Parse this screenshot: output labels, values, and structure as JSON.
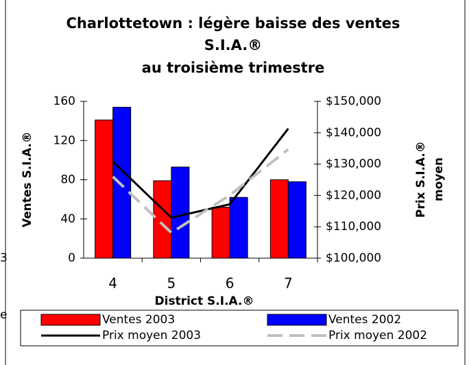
{
  "chart_data": {
    "type": "bar_line",
    "title": [
      "Charlottetown : légère baisse des ventes",
      "S.I.A.®",
      "au troisième trimestre"
    ],
    "xlabel": "District S.I.A.®",
    "ylabel": "Ventes S.I.A.®",
    "y2label": [
      "Prix S.I.A.®",
      "moyen"
    ],
    "categories": [
      "4",
      "5",
      "6",
      "7"
    ],
    "series": [
      {
        "name": "Ventes 2003",
        "type": "bar",
        "color": "#ff0000",
        "values": [
          141,
          79,
          52,
          80
        ]
      },
      {
        "name": "Ventes 2002",
        "type": "bar",
        "color": "#0000ff",
        "values": [
          154,
          93,
          62,
          78
        ]
      },
      {
        "name": "Prix moyen 2003",
        "type": "line",
        "axis": "y2",
        "color": "#000000",
        "dash": false,
        "values": [
          130800,
          112900,
          117200,
          141300
        ]
      },
      {
        "name": "Prix moyen 2002",
        "type": "line",
        "axis": "y2",
        "color": "#c0c0c0",
        "dash": true,
        "values": [
          126000,
          108100,
          120100,
          134700
        ]
      }
    ],
    "ylim": [
      0,
      160
    ],
    "yticks": [
      0,
      40,
      80,
      120,
      160
    ],
    "y2lim": [
      100000,
      150000
    ],
    "y2ticks": [
      {
        "value": 100000,
        "label": "$100,000"
      },
      {
        "value": 110000,
        "label": "$110,000"
      },
      {
        "value": 120000,
        "label": "$120,000"
      },
      {
        "value": 130000,
        "label": "$130,000"
      },
      {
        "value": 140000,
        "label": "$140,000"
      },
      {
        "value": 150000,
        "label": "$150,000"
      }
    ],
    "legend": "bottom",
    "fragments": [
      "3",
      "e"
    ]
  }
}
